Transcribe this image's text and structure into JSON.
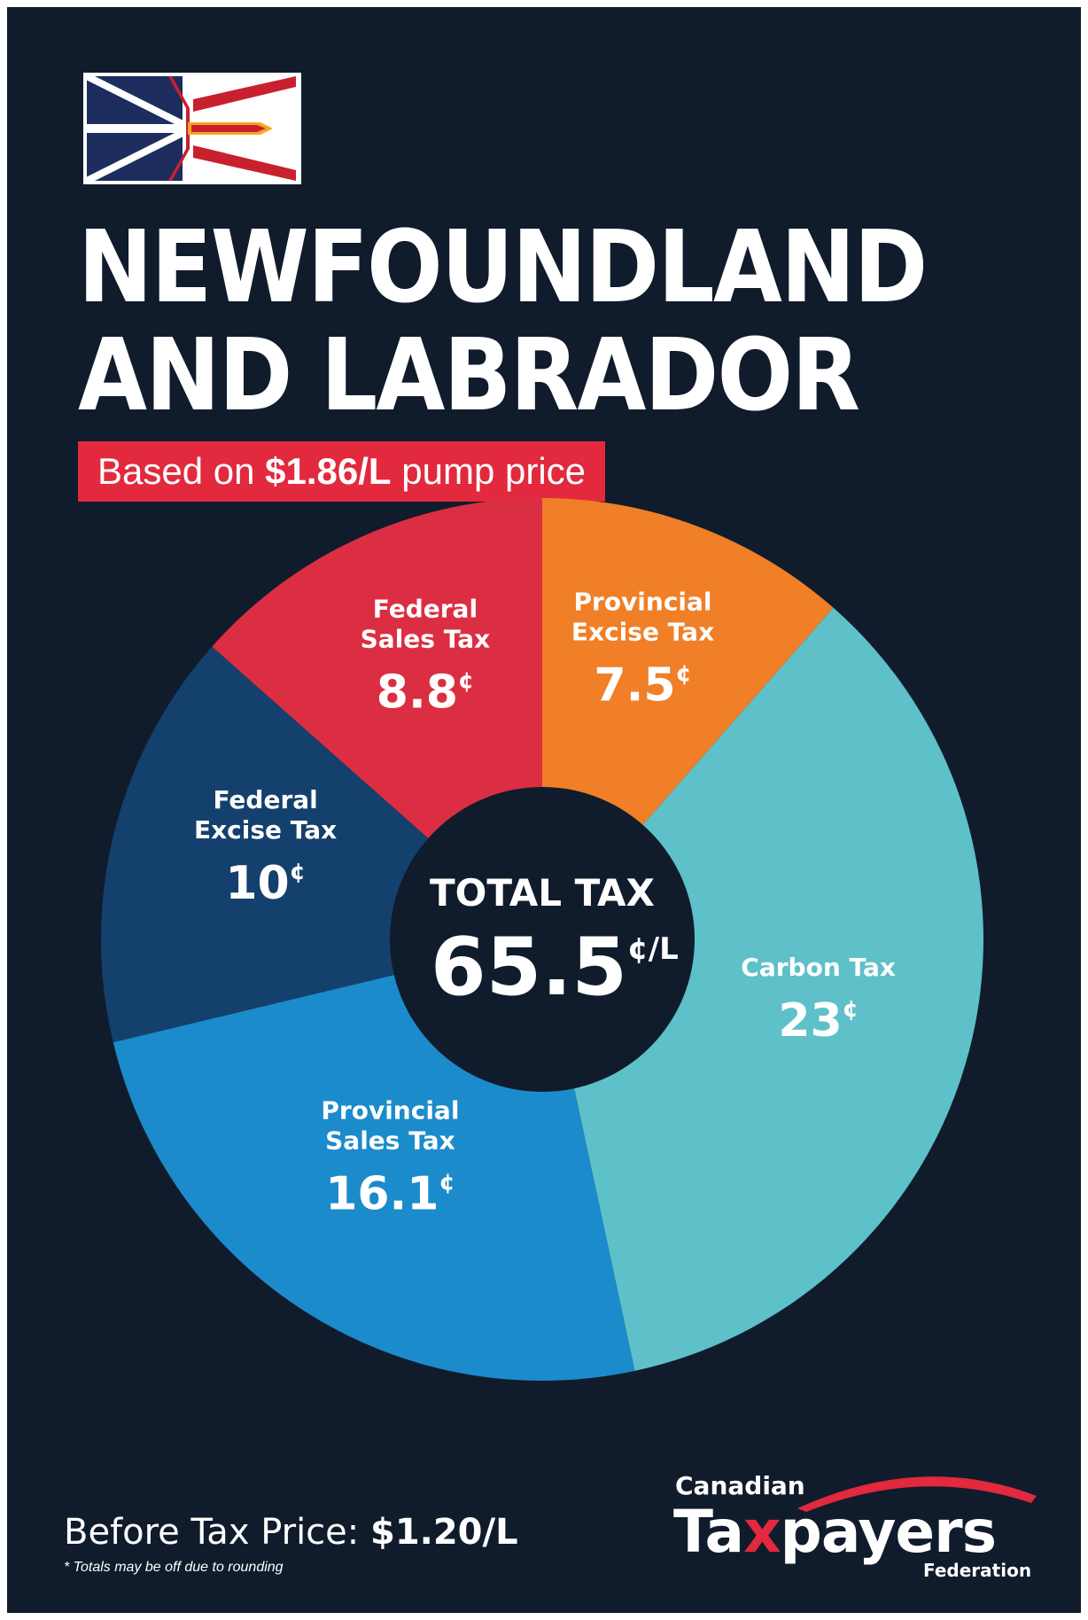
{
  "title_line1": "NEWFOUNDLAND",
  "title_line2": "AND LABRADOR",
  "subtitle": {
    "prefix": "Based on ",
    "price": "$1.86/L",
    "suffix": " pump price"
  },
  "center_label": {
    "title": "TOTAL TAX",
    "value": "65.5",
    "unit": "¢/L"
  },
  "chart_data": {
    "type": "pie",
    "donut": true,
    "total": 65.5,
    "slices": [
      {
        "line1": "Provincial",
        "line2": "Excise Tax",
        "value": 7.5,
        "display": "7.5",
        "color": "#f07f27"
      },
      {
        "line1": "Carbon Tax",
        "line2": "",
        "value": 23,
        "display": "23",
        "color": "#5ec0c9"
      },
      {
        "line1": "Provincial",
        "line2": "Sales Tax",
        "value": 16.1,
        "display": "16.1",
        "color": "#1b8bcb"
      },
      {
        "line1": "Federal",
        "line2": "Excise Tax",
        "value": 10,
        "display": "10",
        "color": "#14406d"
      },
      {
        "line1": "Federal",
        "line2": "Sales Tax",
        "value": 8.8,
        "display": "8.8",
        "color": "#dc2e42"
      }
    ],
    "cent_symbol": "¢"
  },
  "before_tax": {
    "label": "Before Tax Price: ",
    "value": "$1.20/L"
  },
  "footnote": "* Totals may be off due to rounding",
  "logo": {
    "top": "Canadian",
    "main_before": "Ta",
    "main_x": "x",
    "main_after": "payers",
    "bottom": "Federation"
  },
  "colors": {
    "background": "#101c2c",
    "accent_red": "#e2293d"
  }
}
